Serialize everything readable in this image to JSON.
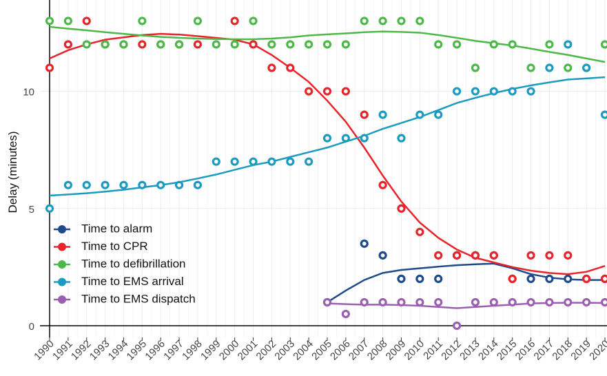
{
  "chart_data": {
    "type": "scatter",
    "y_label": "Delay (minutes)",
    "x": [
      1990,
      1991,
      1992,
      1993,
      1994,
      1995,
      1996,
      1997,
      1998,
      1999,
      2000,
      2001,
      2002,
      2003,
      2004,
      2005,
      2006,
      2007,
      2008,
      2009,
      2010,
      2011,
      2012,
      2013,
      2014,
      2015,
      2016,
      2017,
      2018,
      2019,
      2020
    ],
    "xlim": [
      1990,
      2020
    ],
    "xticks": [
      1990,
      1991,
      1992,
      1993,
      1994,
      1995,
      1996,
      1997,
      1998,
      1999,
      2000,
      2001,
      2002,
      2003,
      2004,
      2005,
      2006,
      2007,
      2008,
      2009,
      2010,
      2011,
      2012,
      2013,
      2014,
      2015,
      2016,
      2017,
      2018,
      2019,
      2020
    ],
    "ylim": [
      -0.5,
      13.6
    ],
    "yticks": [
      0,
      5,
      10
    ],
    "grid": true,
    "legend": "bottom-left",
    "series": [
      {
        "name": "Time to alarm",
        "color": "#1d4a8a",
        "values": [
          null,
          null,
          null,
          null,
          null,
          null,
          null,
          null,
          null,
          null,
          null,
          null,
          null,
          null,
          null,
          1,
          null,
          3.5,
          3,
          2,
          2,
          2,
          3,
          3,
          3,
          2,
          2,
          2,
          2,
          2,
          2
        ],
        "trend": [
          null,
          null,
          null,
          null,
          null,
          null,
          null,
          null,
          null,
          null,
          null,
          null,
          null,
          null,
          null,
          1.0,
          1.5,
          1.95,
          2.25,
          2.38,
          2.45,
          2.52,
          2.58,
          2.62,
          2.65,
          2.45,
          2.2,
          2.05,
          1.98,
          1.95,
          1.95
        ]
      },
      {
        "name": "Time to CPR",
        "color": "#e8232a",
        "values": [
          11,
          12,
          13,
          12,
          12,
          12,
          12,
          12,
          12,
          null,
          13,
          12,
          11,
          11,
          10,
          10,
          10,
          9,
          6,
          5,
          4,
          3,
          3,
          3,
          3,
          2,
          3,
          3,
          3,
          2,
          2
        ],
        "trend": [
          11.4,
          11.75,
          12.0,
          12.2,
          12.3,
          12.4,
          12.45,
          12.42,
          12.35,
          12.28,
          12.2,
          12.0,
          11.55,
          11.0,
          10.4,
          9.6,
          8.7,
          7.6,
          6.4,
          5.3,
          4.4,
          3.75,
          3.25,
          2.9,
          2.7,
          2.5,
          2.35,
          2.25,
          2.2,
          2.3,
          2.55
        ]
      },
      {
        "name": "Time to defibrillation",
        "color": "#4cb848",
        "values": [
          13,
          13,
          12,
          12,
          12,
          13,
          12,
          12,
          13,
          12,
          12,
          13,
          12,
          12,
          12,
          12,
          12,
          13,
          13,
          13,
          13,
          12,
          12,
          11,
          12,
          12,
          11,
          12,
          11,
          11,
          12
        ],
        "trend": [
          12.75,
          12.67,
          12.6,
          12.52,
          12.45,
          12.38,
          12.32,
          12.28,
          12.25,
          12.23,
          12.22,
          12.22,
          12.25,
          12.3,
          12.38,
          12.43,
          12.47,
          12.52,
          12.55,
          12.53,
          12.5,
          12.4,
          12.28,
          12.15,
          12.05,
          11.95,
          11.82,
          11.68,
          11.55,
          11.4,
          11.25
        ]
      },
      {
        "name": "Time to EMS arrival",
        "color": "#1a9bbf",
        "values": [
          5,
          6,
          6,
          6,
          6,
          6,
          6,
          6,
          6,
          7,
          7,
          7,
          7,
          7,
          7,
          8,
          8,
          8,
          9,
          8,
          9,
          9,
          10,
          10,
          10,
          10,
          10,
          11,
          12,
          11,
          9
        ],
        "trend": [
          5.55,
          5.6,
          5.65,
          5.72,
          5.8,
          5.9,
          6.0,
          6.12,
          6.28,
          6.45,
          6.65,
          6.85,
          7.0,
          7.2,
          7.4,
          7.6,
          7.85,
          8.1,
          8.4,
          8.65,
          8.9,
          9.2,
          9.5,
          9.72,
          9.92,
          10.1,
          10.25,
          10.38,
          10.5,
          10.55,
          10.6
        ]
      },
      {
        "name": "Time to EMS dispatch",
        "color": "#9b5fb0",
        "values": [
          null,
          null,
          null,
          null,
          null,
          null,
          null,
          null,
          null,
          null,
          null,
          null,
          null,
          null,
          null,
          1,
          0.5,
          1,
          1,
          1,
          1,
          1,
          0,
          1,
          1,
          1,
          1,
          1,
          1,
          1,
          1
        ],
        "trend": [
          null,
          null,
          null,
          null,
          null,
          null,
          null,
          null,
          null,
          null,
          null,
          null,
          null,
          null,
          null,
          0.95,
          0.92,
          0.9,
          0.9,
          0.88,
          0.85,
          0.8,
          0.75,
          0.8,
          0.85,
          0.9,
          0.95,
          0.97,
          0.98,
          0.98,
          0.97
        ]
      }
    ]
  }
}
